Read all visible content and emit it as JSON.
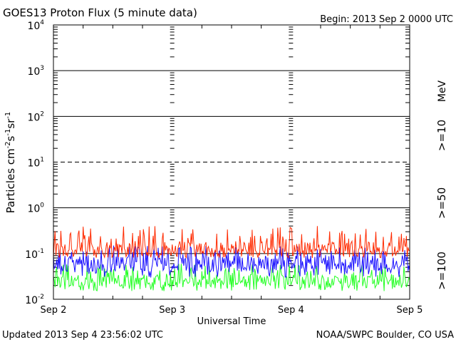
{
  "header": {
    "title": "GOES13 Proton Flux (5 minute data)",
    "begin": "Begin: 2013 Sep 2 0000 UTC"
  },
  "footer": {
    "updated": "Updated 2013 Sep  4 23:56:02 UTC",
    "credit": "NOAA/SWPC Boulder, CO USA"
  },
  "chart_data": {
    "type": "line",
    "title": "GOES13 Proton Flux (5 minute data)",
    "xlabel": "Universal Time",
    "ylabel": "Particles cm⁻²s⁻¹sr⁻¹",
    "ylabel_parts": {
      "main": "Particles cm",
      "sup1": "-2",
      "mid1": "s",
      "sup2": "-1",
      "mid2": "sr",
      "sup3": "-1"
    },
    "y_scale": "log",
    "ylim": [
      0.01,
      10000
    ],
    "y_ticks": [
      {
        "base": "10",
        "exp": "-2"
      },
      {
        "base": "10",
        "exp": "-1"
      },
      {
        "base": "10",
        "exp": "0"
      },
      {
        "base": "10",
        "exp": "1"
      },
      {
        "base": "10",
        "exp": "2"
      },
      {
        "base": "10",
        "exp": "3"
      },
      {
        "base": "10",
        "exp": "4"
      }
    ],
    "x_categories": [
      "Sep 2",
      "Sep 3",
      "Sep 4",
      "Sep 5"
    ],
    "xlim": [
      "2013-09-02 00:00",
      "2013-09-05 00:00"
    ],
    "threshold_line": 10,
    "unit_label": "MeV",
    "series": [
      {
        "name": ">=10",
        "color": "#ff2a00",
        "typical": 0.12,
        "range": [
          0.08,
          0.4
        ]
      },
      {
        "name": ">=50",
        "color": "#1a10ff",
        "typical": 0.06,
        "range": [
          0.03,
          0.15
        ]
      },
      {
        "name": ">=100",
        "color": "#22ff22",
        "typical": 0.025,
        "range": [
          0.015,
          0.06
        ]
      }
    ],
    "colors": {
      "grid": "#000000",
      "threshold": "#ff2a00"
    }
  }
}
